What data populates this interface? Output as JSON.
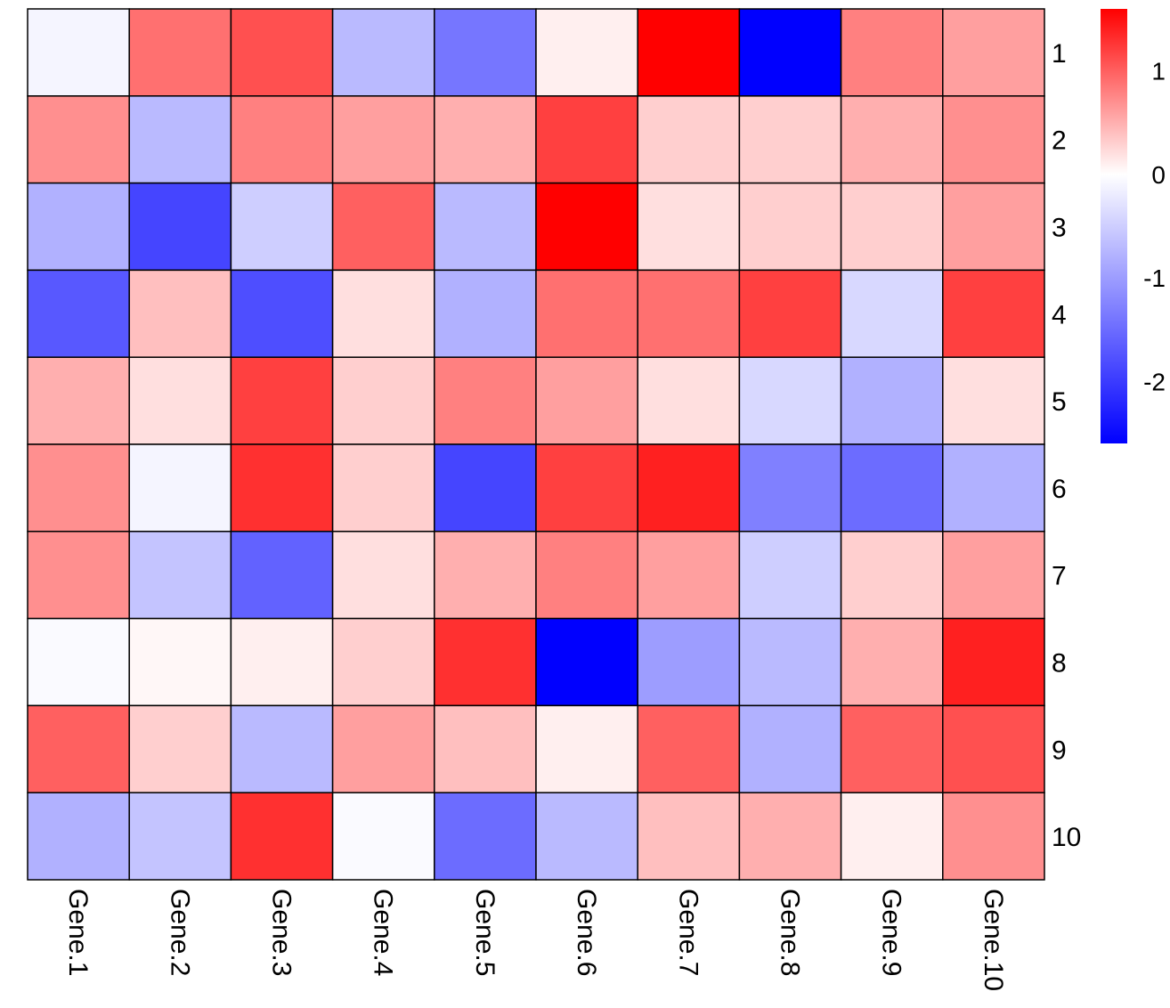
{
  "chart_data": {
    "type": "heatmap",
    "title": "",
    "x_categories": [
      "Gene.1",
      "Gene.2",
      "Gene.3",
      "Gene.4",
      "Gene.5",
      "Gene.6",
      "Gene.7",
      "Gene.8",
      "Gene.9",
      "Gene.10"
    ],
    "y_categories": [
      "1",
      "2",
      "3",
      "4",
      "5",
      "6",
      "7",
      "8",
      "9",
      "10"
    ],
    "values": [
      [
        -0.1,
        0.9,
        1.1,
        -0.7,
        -1.4,
        0.1,
        1.6,
        -2.6,
        0.8,
        0.6
      ],
      [
        0.7,
        -0.7,
        0.8,
        0.6,
        0.5,
        1.2,
        0.3,
        0.3,
        0.5,
        0.7
      ],
      [
        -0.8,
        -1.9,
        -0.5,
        1.0,
        -0.7,
        1.6,
        0.2,
        0.3,
        0.3,
        0.6
      ],
      [
        -1.7,
        0.4,
        -1.8,
        0.2,
        -0.8,
        0.9,
        0.9,
        1.2,
        -0.4,
        1.2
      ],
      [
        0.5,
        0.2,
        1.2,
        0.3,
        0.8,
        0.6,
        0.2,
        -0.4,
        -0.8,
        0.2
      ],
      [
        0.7,
        -0.1,
        1.3,
        0.3,
        -1.9,
        1.2,
        1.4,
        -1.3,
        -1.5,
        -0.8
      ],
      [
        0.7,
        -0.6,
        -1.6,
        0.2,
        0.5,
        0.8,
        0.6,
        -0.5,
        0.3,
        0.6
      ],
      [
        -0.05,
        0.05,
        0.1,
        0.3,
        1.3,
        -2.6,
        -1.0,
        -0.7,
        0.5,
        1.4
      ],
      [
        1.0,
        0.3,
        -0.7,
        0.6,
        0.4,
        0.1,
        1.0,
        -0.8,
        1.0,
        1.1
      ],
      [
        -0.8,
        -0.6,
        1.3,
        -0.05,
        -1.5,
        -0.7,
        0.4,
        0.5,
        0.1,
        0.7
      ]
    ],
    "colorbar": {
      "ticks": [
        "1",
        "0",
        "-1",
        "-2"
      ],
      "min": -2.6,
      "max": 1.6,
      "colors": {
        "low": "#0000ff",
        "mid": "#ffffff",
        "high": "#ff0000"
      }
    }
  }
}
